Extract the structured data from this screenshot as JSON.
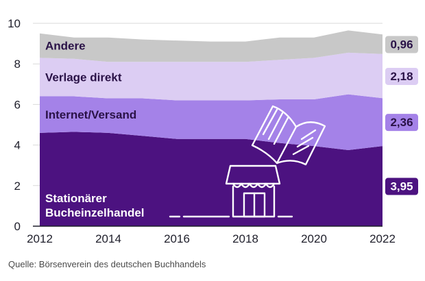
{
  "source": "Quelle: Börsenverein des deutschen Buchhandels",
  "chart_data": {
    "type": "area",
    "stacked": true,
    "x": [
      2012,
      2013,
      2014,
      2015,
      2016,
      2017,
      2018,
      2019,
      2020,
      2021,
      2022
    ],
    "xticks": [
      2012,
      2014,
      2016,
      2018,
      2020,
      2022
    ],
    "yticks": [
      0,
      2,
      4,
      6,
      8,
      10
    ],
    "ylim": [
      0,
      10
    ],
    "grid": true,
    "series": [
      {
        "name": "Stationärer Bucheinzelhandel",
        "name_lines": [
          "Stationärer",
          "Bucheinzelhandel"
        ],
        "color": "#4c1280",
        "text_color": "#ffffff",
        "values": [
          4.6,
          4.65,
          4.6,
          4.45,
          4.3,
          4.3,
          4.3,
          4.1,
          3.95,
          3.75,
          3.95
        ]
      },
      {
        "name": "Internet/Versand",
        "name_lines": [
          "Internet/Versand"
        ],
        "color": "#a482e8",
        "text_color": "#2a1247",
        "values": [
          1.8,
          1.75,
          1.7,
          1.85,
          1.9,
          1.9,
          1.9,
          2.15,
          2.3,
          2.75,
          2.36
        ]
      },
      {
        "name": "Verlage direkt",
        "name_lines": [
          "Verlage direkt"
        ],
        "color": "#dccdf3",
        "text_color": "#2a1247",
        "values": [
          1.9,
          1.85,
          1.8,
          1.8,
          1.9,
          1.9,
          1.9,
          1.95,
          2.05,
          2.05,
          2.18
        ]
      },
      {
        "name": "Andere",
        "name_lines": [
          "Andere"
        ],
        "color": "#c8c8c8",
        "text_color": "#2a1247",
        "values": [
          1.2,
          1.05,
          1.2,
          1.1,
          1.05,
          1.0,
          1.0,
          1.1,
          1.0,
          1.1,
          0.96
        ]
      }
    ],
    "end_labels": [
      "3,95",
      "2,36",
      "2,18",
      "0,96"
    ]
  }
}
